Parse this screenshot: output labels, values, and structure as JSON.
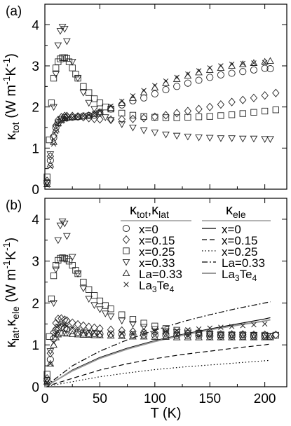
{
  "chart_data": [
    {
      "type": "scatter",
      "panel_label": "(a)",
      "ylabel": "κ_tot (W m^-1K^-1)",
      "xlim": [
        0,
        220
      ],
      "ylim": [
        0,
        4.5
      ],
      "yticks": [
        0,
        1,
        2,
        3,
        4
      ],
      "xticks": [
        0,
        50,
        100,
        150,
        200
      ],
      "series": [
        {
          "name": "x=0",
          "marker": "circle",
          "x": [
            2,
            5,
            8,
            10,
            12,
            15,
            18,
            20,
            25,
            30,
            35,
            40,
            45,
            50,
            60,
            70,
            80,
            90,
            100,
            110,
            120,
            130,
            140,
            150,
            160,
            170,
            180,
            190,
            200,
            205
          ],
          "y": [
            0.15,
            0.7,
            1.25,
            1.5,
            1.62,
            1.7,
            1.74,
            1.75,
            1.75,
            1.76,
            1.78,
            1.79,
            1.8,
            1.85,
            1.95,
            2.05,
            2.15,
            2.22,
            2.32,
            2.42,
            2.5,
            2.58,
            2.65,
            2.72,
            2.78,
            2.82,
            2.86,
            2.9,
            2.94,
            2.93
          ]
        },
        {
          "name": "x=0.15",
          "marker": "diamond",
          "x": [
            2,
            5,
            8,
            10,
            12,
            15,
            18,
            20,
            25,
            30,
            35,
            40,
            45,
            50,
            60,
            70,
            80,
            90,
            100,
            110,
            120,
            130,
            140,
            150,
            160,
            170,
            180,
            190,
            200,
            210
          ],
          "y": [
            0.2,
            0.8,
            1.3,
            1.55,
            1.68,
            1.75,
            1.78,
            1.78,
            1.78,
            1.77,
            1.75,
            1.73,
            1.71,
            1.7,
            1.69,
            1.7,
            1.71,
            1.73,
            1.76,
            1.8,
            1.85,
            1.9,
            1.95,
            2.0,
            2.06,
            2.12,
            2.17,
            2.22,
            2.28,
            2.34
          ]
        },
        {
          "name": "x=0.25",
          "marker": "square",
          "x": [
            2,
            4,
            6,
            8,
            10,
            12,
            14,
            16,
            18,
            20,
            22,
            25,
            28,
            30,
            35,
            40,
            45,
            50,
            55,
            60,
            70,
            80,
            90,
            100,
            110,
            120,
            130,
            140,
            150,
            160,
            170,
            180,
            190,
            200,
            210
          ],
          "y": [
            0.3,
            1.2,
            2.1,
            2.7,
            2.95,
            3.1,
            3.17,
            3.2,
            3.2,
            3.18,
            3.1,
            2.95,
            2.8,
            2.7,
            2.5,
            2.35,
            2.2,
            2.1,
            2.0,
            1.95,
            1.85,
            1.8,
            1.77,
            1.75,
            1.74,
            1.74,
            1.75,
            1.76,
            1.77,
            1.79,
            1.81,
            1.84,
            1.87,
            1.9,
            1.93
          ]
        },
        {
          "name": "x=0.33",
          "marker": "triangle-down",
          "x": [
            2,
            5,
            8,
            10,
            12,
            14,
            16,
            18,
            20,
            25,
            30,
            35,
            40,
            45,
            50,
            55,
            60,
            70,
            80,
            90,
            100,
            110,
            120,
            130,
            140,
            150,
            160,
            170,
            180,
            190,
            200,
            205
          ],
          "y": [
            0.15,
            0.85,
            2.0,
            2.8,
            3.5,
            3.85,
            3.95,
            3.9,
            3.6,
            3.1,
            2.7,
            2.35,
            2.1,
            1.95,
            1.85,
            1.75,
            1.68,
            1.58,
            1.5,
            1.43,
            1.38,
            1.33,
            1.3,
            1.28,
            1.26,
            1.25,
            1.24,
            1.24,
            1.23,
            1.23,
            1.22,
            1.22
          ]
        },
        {
          "name": "La=0.33",
          "marker": "triangle-up",
          "x": [
            2,
            5,
            8,
            10,
            12,
            15,
            18,
            20,
            25,
            30,
            35,
            40,
            45,
            50,
            60,
            70,
            80,
            90,
            100,
            110,
            120,
            130,
            140,
            150,
            160,
            170,
            180,
            190,
            200,
            205
          ],
          "y": [
            0.12,
            0.6,
            1.15,
            1.45,
            1.6,
            1.68,
            1.72,
            1.74,
            1.75,
            1.76,
            1.78,
            1.8,
            1.83,
            1.88,
            1.98,
            2.1,
            2.22,
            2.35,
            2.47,
            2.58,
            2.68,
            2.76,
            2.84,
            2.9,
            2.95,
            3.0,
            3.04,
            3.07,
            3.1,
            3.12
          ]
        },
        {
          "name": "La3Te4",
          "marker": "x",
          "x": [
            2,
            5,
            8,
            10,
            12,
            15,
            18,
            20,
            25,
            30,
            35,
            40,
            45,
            50,
            60,
            70,
            80,
            90,
            100,
            110,
            120,
            130,
            140,
            150,
            160,
            170,
            180,
            190,
            200
          ],
          "y": [
            0.1,
            0.55,
            1.1,
            1.4,
            1.58,
            1.66,
            1.7,
            1.72,
            1.74,
            1.76,
            1.78,
            1.8,
            1.84,
            1.9,
            2.02,
            2.14,
            2.27,
            2.4,
            2.52,
            2.63,
            2.72,
            2.8,
            2.88,
            2.95,
            3.0,
            3.04,
            3.06,
            3.07,
            3.08
          ]
        }
      ]
    },
    {
      "type": "scatter",
      "panel_label": "(b)",
      "xlabel": "T (K)",
      "ylabel": "κ_lat, κ_ele (W m^-1K^-1)",
      "xlim": [
        0,
        220
      ],
      "ylim": [
        0,
        4.5
      ],
      "yticks": [
        0,
        1,
        2,
        3,
        4
      ],
      "xticks": [
        0,
        50,
        100,
        150,
        200
      ],
      "legend_header_markers": "κ_tot, κ_lat",
      "legend_header_lines": "κ_ele",
      "series": [
        {
          "name": "x=0",
          "marker": "circle",
          "x": [
            2,
            5,
            8,
            10,
            12,
            15,
            18,
            20,
            25,
            30,
            35,
            40,
            45,
            50,
            60,
            70,
            80,
            90,
            100,
            110,
            120,
            130,
            140,
            150,
            160,
            170,
            180,
            190,
            200,
            205
          ],
          "y": [
            0.15,
            0.65,
            1.15,
            1.35,
            1.42,
            1.42,
            1.4,
            1.38,
            1.34,
            1.3,
            1.28,
            1.27,
            1.27,
            1.26,
            1.26,
            1.25,
            1.24,
            1.24,
            1.23,
            1.23,
            1.22,
            1.22,
            1.22,
            1.21,
            1.21,
            1.21,
            1.2,
            1.2,
            1.2,
            1.2
          ]
        },
        {
          "name": "x=0.15",
          "marker": "diamond",
          "x": [
            2,
            5,
            8,
            10,
            12,
            15,
            18,
            20,
            25,
            30,
            35,
            40,
            45,
            50,
            60,
            70,
            80,
            90,
            100,
            110,
            120,
            130,
            140,
            150,
            160,
            170,
            180,
            190,
            200,
            210
          ],
          "y": [
            0.2,
            0.8,
            1.3,
            1.52,
            1.62,
            1.63,
            1.6,
            1.58,
            1.53,
            1.49,
            1.46,
            1.43,
            1.41,
            1.39,
            1.36,
            1.34,
            1.32,
            1.3,
            1.29,
            1.28,
            1.27,
            1.27,
            1.26,
            1.26,
            1.25,
            1.25,
            1.25,
            1.24,
            1.24,
            1.24
          ]
        },
        {
          "name": "x=0.25",
          "marker": "square",
          "x": [
            2,
            4,
            6,
            8,
            10,
            12,
            14,
            16,
            18,
            20,
            22,
            25,
            28,
            30,
            35,
            40,
            45,
            50,
            55,
            60,
            70,
            80,
            90,
            100,
            110,
            120,
            130,
            140,
            150,
            160,
            170,
            180,
            190,
            200,
            210
          ],
          "y": [
            0.3,
            1.2,
            2.1,
            2.65,
            2.9,
            3.02,
            3.07,
            3.08,
            3.07,
            3.05,
            3.0,
            2.9,
            2.78,
            2.7,
            2.5,
            2.32,
            2.18,
            2.05,
            1.94,
            1.86,
            1.72,
            1.61,
            1.52,
            1.45,
            1.39,
            1.35,
            1.31,
            1.28,
            1.26,
            1.25,
            1.24,
            1.24,
            1.23,
            1.23,
            1.23
          ]
        },
        {
          "name": "x=0.33",
          "marker": "triangle-down",
          "x": [
            2,
            5,
            8,
            10,
            12,
            14,
            16,
            18,
            20,
            25,
            30,
            35,
            40,
            45,
            50,
            55,
            60,
            70,
            80,
            90,
            100,
            110,
            120,
            130,
            140,
            150,
            160,
            170,
            180,
            190,
            200,
            205
          ],
          "y": [
            0.15,
            0.85,
            2.0,
            2.8,
            3.5,
            3.85,
            3.95,
            3.9,
            3.6,
            3.1,
            2.7,
            2.35,
            2.1,
            1.95,
            1.85,
            1.75,
            1.68,
            1.58,
            1.5,
            1.43,
            1.38,
            1.33,
            1.3,
            1.28,
            1.26,
            1.25,
            1.24,
            1.24,
            1.23,
            1.23,
            1.22,
            1.22
          ]
        },
        {
          "name": "La=0.33",
          "marker": "triangle-up",
          "x": [
            2,
            5,
            8,
            10,
            12,
            15,
            18,
            20,
            25,
            30,
            35,
            40,
            45,
            50,
            60,
            70,
            80,
            90,
            100,
            110,
            120,
            130,
            140,
            150,
            160,
            170,
            180,
            190,
            200,
            205
          ],
          "y": [
            0.12,
            0.55,
            1.0,
            1.18,
            1.25,
            1.28,
            1.28,
            1.27,
            1.26,
            1.25,
            1.24,
            1.24,
            1.23,
            1.23,
            1.22,
            1.21,
            1.2,
            1.2,
            1.19,
            1.19,
            1.18,
            1.18,
            1.18,
            1.18,
            1.18,
            1.18,
            1.18,
            1.18,
            1.18,
            1.18
          ]
        },
        {
          "name": "La3Te4",
          "marker": "x",
          "x": [
            2,
            5,
            8,
            10,
            12,
            15,
            18,
            20,
            25,
            30,
            35,
            40,
            45,
            50,
            60,
            70,
            80,
            90,
            100,
            110,
            120,
            130,
            140,
            150,
            160,
            170,
            180,
            190,
            200
          ],
          "y": [
            0.1,
            0.55,
            1.05,
            1.3,
            1.45,
            1.5,
            1.48,
            1.45,
            1.4,
            1.36,
            1.33,
            1.31,
            1.3,
            1.29,
            1.28,
            1.28,
            1.29,
            1.3,
            1.31,
            1.32,
            1.34,
            1.36,
            1.38,
            1.4,
            1.42,
            1.44,
            1.46,
            1.48,
            1.5
          ]
        }
      ],
      "lines": [
        {
          "name": "x=0",
          "style": "solid",
          "color": "#000000",
          "x": [
            0,
            10,
            25,
            50,
            75,
            100,
            125,
            150,
            175,
            200,
            205
          ],
          "y": [
            0,
            0.15,
            0.4,
            0.7,
            0.92,
            1.1,
            1.25,
            1.38,
            1.5,
            1.62,
            1.65
          ]
        },
        {
          "name": "x=0.15",
          "style": "dashed",
          "color": "#000000",
          "x": [
            0,
            10,
            25,
            50,
            75,
            100,
            125,
            150,
            175,
            200,
            205
          ],
          "y": [
            0,
            0.08,
            0.2,
            0.4,
            0.55,
            0.67,
            0.77,
            0.85,
            0.93,
            1.0,
            1.02
          ]
        },
        {
          "name": "x=0.25",
          "style": "dotted",
          "color": "#000000",
          "x": [
            0,
            10,
            25,
            50,
            75,
            100,
            125,
            150,
            175,
            200,
            205
          ],
          "y": [
            0,
            0.05,
            0.12,
            0.24,
            0.33,
            0.41,
            0.47,
            0.52,
            0.57,
            0.62,
            0.63
          ]
        },
        {
          "name": "La=0.33",
          "style": "dashdot",
          "color": "#000000",
          "x": [
            0,
            10,
            25,
            50,
            75,
            100,
            125,
            150,
            175,
            200,
            205
          ],
          "y": [
            0,
            0.2,
            0.5,
            0.85,
            1.12,
            1.35,
            1.55,
            1.72,
            1.87,
            2.0,
            2.03
          ]
        },
        {
          "name": "La3Te4",
          "style": "solid",
          "color": "#999999",
          "x": [
            0,
            10,
            25,
            50,
            75,
            100,
            125,
            150,
            175,
            200,
            205
          ],
          "y": [
            0,
            0.15,
            0.38,
            0.68,
            0.9,
            1.08,
            1.23,
            1.36,
            1.47,
            1.57,
            1.6
          ]
        }
      ]
    }
  ]
}
